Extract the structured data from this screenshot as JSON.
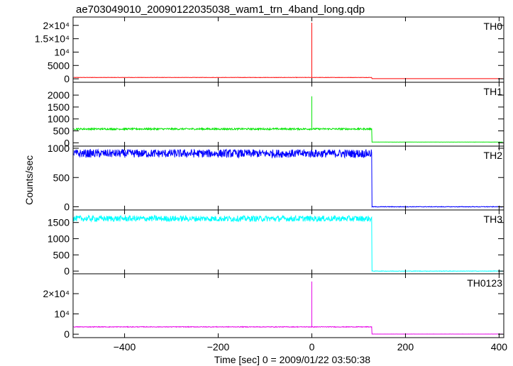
{
  "chart_data": {
    "type": "line",
    "title": "ae703049010_20090122035038_wam1_trn_4band_long.qdp",
    "xlabel": "Time [sec] 0 = 2009/01/22 03:50:38",
    "ylabel": "Counts/sec",
    "xlim": [
      -510,
      410
    ],
    "x_ticks": [
      -400,
      -200,
      0,
      200,
      400
    ],
    "x_tick_labels": [
      "−400",
      "−200",
      "0",
      "200",
      "400"
    ],
    "grid": false,
    "legend": "none",
    "panels": [
      {
        "name": "TH0",
        "color": "#ff0000",
        "ylim": [
          -500,
          21000
        ],
        "y_ticks": [
          0,
          5000,
          10000,
          15000,
          20000
        ],
        "y_tick_labels": [
          "0",
          "5000",
          "10⁴",
          "1.5×10⁴",
          "2×10⁴"
        ],
        "baseline": 500,
        "noise": 60,
        "spike_x": 0,
        "spike_value": 21000,
        "drop_x": 128,
        "after_value": 60
      },
      {
        "name": "TH1",
        "color": "#00e600",
        "ylim": [
          -50,
          2300
        ],
        "y_ticks": [
          0,
          500,
          1000,
          1500,
          2000
        ],
        "y_tick_labels": [
          "0",
          "500",
          "1000",
          "1500",
          "2000"
        ],
        "baseline": 580,
        "noise": 35,
        "spike_x": 0,
        "spike_value": 1950,
        "drop_x": 128,
        "after_value": 30
      },
      {
        "name": "TH2",
        "color": "#0000ff",
        "ylim": [
          -30,
          1000
        ],
        "y_ticks": [
          0,
          500,
          1000
        ],
        "y_tick_labels": [
          "0",
          "500",
          "1000"
        ],
        "baseline": 910,
        "noise": 70,
        "spike_x": null,
        "spike_value": null,
        "drop_x": 128,
        "after_value": 0
      },
      {
        "name": "TH3",
        "color": "#00ffff",
        "ylim": [
          -40,
          1800
        ],
        "y_ticks": [
          0,
          500,
          1000,
          1500
        ],
        "y_tick_labels": [
          "0",
          "500",
          "1000",
          "1500"
        ],
        "baseline": 1620,
        "noise": 90,
        "spike_x": null,
        "spike_value": null,
        "drop_x": 128,
        "after_value": 0
      },
      {
        "name": "TH0123",
        "color": "#e600e6",
        "ylim": [
          -1000,
          27000
        ],
        "y_ticks": [
          0,
          10000,
          20000
        ],
        "y_tick_labels": [
          "0",
          "10⁴",
          "2×10⁴"
        ],
        "baseline": 3600,
        "noise": 160,
        "spike_x": 0,
        "spike_value": 26000,
        "drop_x": 128,
        "after_value": 60
      }
    ]
  }
}
